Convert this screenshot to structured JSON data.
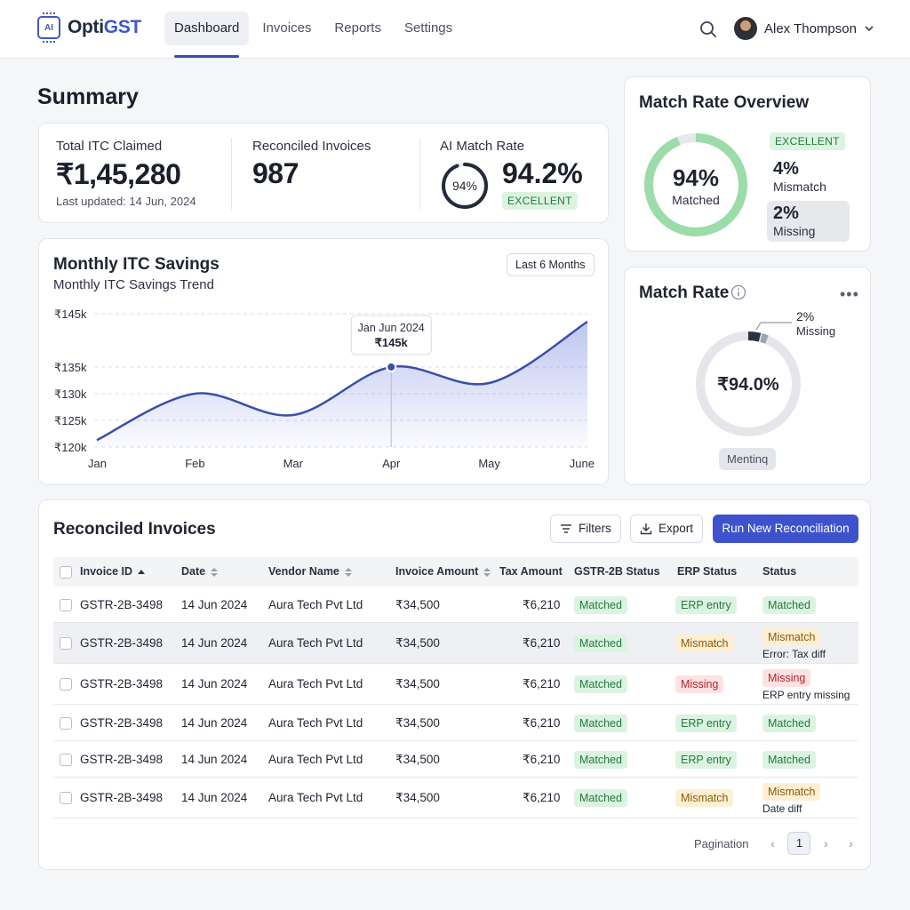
{
  "app": {
    "logo_prefix": "Opti",
    "logo_suffix": "GST",
    "logo_chip": "AI"
  },
  "nav": {
    "items": [
      "Dashboard",
      "Invoices",
      "Reports",
      "Settings"
    ],
    "active": "Dashboard"
  },
  "user": {
    "name": "Alex Thompson"
  },
  "summary": {
    "title": "Summary",
    "total_itc_label": "Total ITC Claimed",
    "total_itc_value": "₹1,45,280",
    "last_updated": "Last updated: 14 Jun, 2024",
    "reconciled_label": "Reconciled Invoices",
    "reconciled_value": "987",
    "ai_label": "AI Match Rate",
    "ai_ring_text": "94%",
    "ai_value": "94.2%",
    "ai_badge": "EXCELLENT",
    "ai_ring_fraction": 0.94
  },
  "overview": {
    "title": "Match Rate Overview",
    "center_pct": "94%",
    "center_label": "Matched",
    "badge": "EXCELLENT",
    "mismatch_pct": "4%",
    "mismatch_label": "Mismatch",
    "missing_pct": "2%",
    "missing_label": "Missing",
    "ring_fraction": 0.94,
    "ring_color": "#9bdca8"
  },
  "savings": {
    "title": "Monthly ITC Savings",
    "subtitle": "Monthly ITC Savings Trend",
    "range_button": "Last 6 Months",
    "tooltip_date": "Jan Jun 2024",
    "tooltip_value": "₹145k"
  },
  "chart_data": {
    "type": "area",
    "categories": [
      "Jan",
      "Feb",
      "Mar",
      "Apr",
      "May",
      "June"
    ],
    "values": [
      121.3,
      130,
      126,
      135,
      132,
      143.5
    ],
    "y_ticks": [
      "₹120k",
      "₹125k",
      "₹130k",
      "₹135k",
      "₹145k"
    ],
    "ylim": [
      120,
      145
    ],
    "highlight_index": 3,
    "grid": true,
    "line_color": "#3a4fa8"
  },
  "matchrate": {
    "title": "Match Rate",
    "center": "₹94.0%",
    "missing_pct": "2%",
    "missing_label": "Missing",
    "tag": "Mentinq"
  },
  "table": {
    "title": "Reconciled Invoices",
    "filters_label": "Filters",
    "export_label": "Export",
    "run_label": "Run New Reconciliation",
    "headers": [
      "Invoice ID",
      "Date",
      "Vendor Name",
      "Invoice Amount",
      "Tax Amount",
      "GSTR-2B Status",
      "ERP Status",
      "Status"
    ],
    "rows": [
      {
        "id": "GSTR-2B-3498",
        "date": "14 Jun 2024",
        "vendor": "Aura Tech Pvt Ltd",
        "amount": "₹34,500",
        "tax": "₹6,210",
        "gstr": "Matched",
        "erp": "ERP entry",
        "erp_tone": "green",
        "status": "Matched",
        "status_tone": "green",
        "note": ""
      },
      {
        "id": "GSTR-2B-3498",
        "date": "14 Jun 2024",
        "vendor": "Aura Tech Pvt Ltd",
        "amount": "₹34,500",
        "tax": "₹6,210",
        "gstr": "Matched",
        "erp": "Mismatch",
        "erp_tone": "amber",
        "status": "Mismatch",
        "status_tone": "amber",
        "note": "Error: Tax diff"
      },
      {
        "id": "GSTR-2B-3498",
        "date": "14 Jun 2024",
        "vendor": "Aura Tech Pvt Ltd",
        "amount": "₹34,500",
        "tax": "₹6,210",
        "gstr": "Matched",
        "erp": "Missing",
        "erp_tone": "red",
        "status": "Missing",
        "status_tone": "red",
        "note": "ERP entry missing"
      },
      {
        "id": "GSTR-2B-3498",
        "date": "14 Jun 2024",
        "vendor": "Aura Tech Pvt Ltd",
        "amount": "₹34,500",
        "tax": "₹6,210",
        "gstr": "Matched",
        "erp": "ERP entry",
        "erp_tone": "green",
        "status": "Matched",
        "status_tone": "green",
        "note": ""
      },
      {
        "id": "GSTR-2B-3498",
        "date": "14 Jun 2024",
        "vendor": "Aura Tech Pvt Ltd",
        "amount": "₹34,500",
        "tax": "₹6,210",
        "gstr": "Matched",
        "erp": "ERP entry",
        "erp_tone": "green",
        "status": "Matched",
        "status_tone": "green",
        "note": ""
      },
      {
        "id": "GSTR-2B-3498",
        "date": "14 Jun 2024",
        "vendor": "Aura Tech Pvt Ltd",
        "amount": "₹34,500",
        "tax": "₹6,210",
        "gstr": "Matched",
        "erp": "Mismatch",
        "erp_tone": "amber",
        "status": "Mismatch",
        "status_tone": "amber",
        "note": "Date diff"
      }
    ],
    "pagination_label": "Pagination",
    "current_page": "1"
  }
}
